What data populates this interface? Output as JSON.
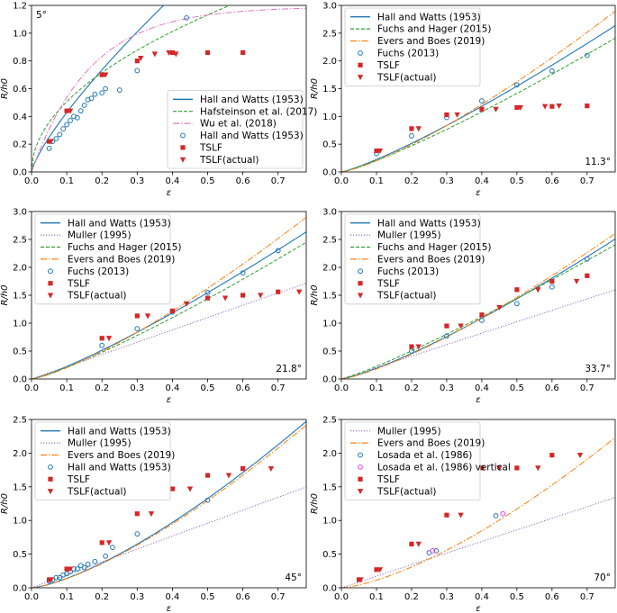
{
  "figure": {
    "style": {
      "hall_color": "#1f77b4",
      "green_color": "#2ca02c",
      "orange_color": "#ff7f0e",
      "purple_color": "#9467bd",
      "pink_color": "#e377c2",
      "red_color": "#d62728"
    }
  },
  "chart_data": [
    {
      "type": "scatter",
      "angle_label": "5°",
      "angle_pos": "top-left",
      "legend_pos": "bottom-right",
      "xlabel": "ε",
      "ylabel": "R/h0",
      "xlim": [
        0,
        0.78
      ],
      "ylim": [
        0,
        1.2
      ],
      "xticks": [
        "0.0",
        "0.1",
        "0.2",
        "0.3",
        "0.4",
        "0.5",
        "0.6",
        "0.7"
      ],
      "yticks": [
        "0.0",
        "0.2",
        "0.4",
        "0.6",
        "0.8",
        "1.0",
        "1.2"
      ],
      "series": [
        {
          "name": "Hall and Watts (1953)",
          "kind": "line",
          "model": "hall",
          "params": {
            "a": 2.58,
            "b": 0.78
          }
        },
        {
          "name": "Hafsteinson et al. (2017)",
          "kind": "line",
          "model": "sqrt",
          "params": {
            "a": 1.6
          }
        },
        {
          "name": "Wu et al. (2018)",
          "kind": "line",
          "model": "wu",
          "params": {
            "a": 1.19,
            "k": 6.0
          }
        },
        {
          "name": "Hall and Watts (1953)",
          "kind": "points",
          "marker": "open-circle",
          "x": [
            0.05,
            0.06,
            0.07,
            0.08,
            0.09,
            0.1,
            0.11,
            0.12,
            0.13,
            0.14,
            0.15,
            0.16,
            0.17,
            0.18,
            0.2,
            0.21,
            0.25,
            0.3,
            0.44
          ],
          "y": [
            0.17,
            0.22,
            0.24,
            0.27,
            0.31,
            0.34,
            0.37,
            0.4,
            0.39,
            0.44,
            0.48,
            0.52,
            0.53,
            0.56,
            0.57,
            0.6,
            0.59,
            0.73,
            1.11
          ]
        },
        {
          "name": "TSLF",
          "kind": "points",
          "marker": "square",
          "x": [
            0.05,
            0.1,
            0.2,
            0.3,
            0.4,
            0.5,
            0.6
          ],
          "y": [
            0.22,
            0.44,
            0.7,
            0.8,
            0.86,
            0.86,
            0.86
          ]
        },
        {
          "name": "TSLF(actual)",
          "kind": "points",
          "marker": "tri-down",
          "x": [
            0.055,
            0.11,
            0.21,
            0.31,
            0.35,
            0.39,
            0.41
          ],
          "y": [
            0.22,
            0.44,
            0.7,
            0.82,
            0.85,
            0.86,
            0.85
          ]
        }
      ]
    },
    {
      "type": "scatter",
      "angle_label": "11.3°",
      "angle_pos": "bottom-right",
      "legend_pos": "top-left",
      "xlabel": "ε",
      "ylabel": "R/h0",
      "xlim": [
        0,
        0.78
      ],
      "ylim": [
        0,
        3.0
      ],
      "xticks": [
        "0.0",
        "0.1",
        "0.2",
        "0.3",
        "0.4",
        "0.5",
        "0.6",
        "0.7"
      ],
      "yticks": [
        "0.0",
        "0.5",
        "1.0",
        "1.5",
        "2.0",
        "2.5",
        "3.0"
      ],
      "series": [
        {
          "name": "Hall and Watts (1953)",
          "kind": "line",
          "model": "power",
          "params": {
            "a": 3.55,
            "p": 1.2
          }
        },
        {
          "name": "Fuchs and Hager (2015)",
          "kind": "line",
          "model": "power",
          "params": {
            "a": 3.25,
            "p": 1.2
          }
        },
        {
          "name": "Evers and Boes (2019)",
          "kind": "line",
          "model": "power",
          "params": {
            "a": 4.0,
            "p": 1.3
          }
        },
        {
          "name": "Fuchs (2013)",
          "kind": "points",
          "marker": "open-circle",
          "x": [
            0.1,
            0.2,
            0.3,
            0.4,
            0.5,
            0.6,
            0.7
          ],
          "y": [
            0.33,
            0.65,
            0.98,
            1.28,
            1.57,
            1.82,
            2.1
          ]
        },
        {
          "name": "TSLF",
          "kind": "points",
          "marker": "square",
          "x": [
            0.1,
            0.2,
            0.3,
            0.4,
            0.5,
            0.6,
            0.7
          ],
          "y": [
            0.38,
            0.78,
            1.03,
            1.13,
            1.16,
            1.18,
            1.19
          ]
        },
        {
          "name": "TSLF(actual)",
          "kind": "points",
          "marker": "tri-down",
          "x": [
            0.11,
            0.22,
            0.33,
            0.44,
            0.51,
            0.58,
            0.62
          ],
          "y": [
            0.38,
            0.78,
            1.03,
            1.13,
            1.16,
            1.18,
            1.19
          ]
        }
      ]
    },
    {
      "type": "scatter",
      "angle_label": "21.8°",
      "angle_pos": "bottom-right",
      "legend_pos": "top-left",
      "xlabel": "ε",
      "ylabel": "R/h0",
      "xlim": [
        0,
        0.78
      ],
      "ylim": [
        0,
        3.0
      ],
      "xticks": [
        "0.0",
        "0.1",
        "0.2",
        "0.3",
        "0.4",
        "0.5",
        "0.6",
        "0.7"
      ],
      "yticks": [
        "0.0",
        "0.5",
        "1.0",
        "1.5",
        "2.0",
        "2.5",
        "3.0"
      ],
      "series": [
        {
          "name": "Hall and Watts (1953)",
          "kind": "line",
          "model": "power",
          "params": {
            "a": 3.55,
            "p": 1.2
          }
        },
        {
          "name": "Muller (1995)",
          "kind": "line",
          "model": "power",
          "params": {
            "a": 2.2,
            "p": 1.0
          }
        },
        {
          "name": "Fuchs and Hager (2015)",
          "kind": "line",
          "model": "power",
          "params": {
            "a": 3.3,
            "p": 1.2
          }
        },
        {
          "name": "Evers and Boes (2019)",
          "kind": "line",
          "model": "power",
          "params": {
            "a": 4.0,
            "p": 1.3
          }
        },
        {
          "name": "Fuchs (2013)",
          "kind": "points",
          "marker": "open-circle",
          "x": [
            0.2,
            0.3,
            0.4,
            0.5,
            0.6,
            0.7
          ],
          "y": [
            0.6,
            0.9,
            1.2,
            1.55,
            1.9,
            2.3
          ]
        },
        {
          "name": "TSLF",
          "kind": "points",
          "marker": "square",
          "x": [
            0.2,
            0.3,
            0.4,
            0.5,
            0.6,
            0.7
          ],
          "y": [
            0.73,
            1.13,
            1.22,
            1.45,
            1.5,
            1.56
          ]
        },
        {
          "name": "TSLF(actual)",
          "kind": "points",
          "marker": "tri-down",
          "x": [
            0.22,
            0.33,
            0.44,
            0.55,
            0.65,
            0.76
          ],
          "y": [
            0.73,
            1.13,
            1.35,
            1.45,
            1.5,
            1.56
          ]
        }
      ]
    },
    {
      "type": "scatter",
      "angle_label": "33.7°",
      "angle_pos": "bottom-right",
      "legend_pos": "top-left",
      "xlabel": "ε",
      "ylabel": "R/h0",
      "xlim": [
        0,
        0.78
      ],
      "ylim": [
        0,
        3.0
      ],
      "xticks": [
        "0.0",
        "0.1",
        "0.2",
        "0.3",
        "0.4",
        "0.5",
        "0.6",
        "0.7"
      ],
      "yticks": [
        "0.0",
        "0.5",
        "1.0",
        "1.5",
        "2.0",
        "2.5",
        "3.0"
      ],
      "series": [
        {
          "name": "Hall and Watts (1953)",
          "kind": "line",
          "model": "power",
          "params": {
            "a": 3.42,
            "p": 1.25
          }
        },
        {
          "name": "Muller (1995)",
          "kind": "line",
          "model": "power",
          "params": {
            "a": 2.05,
            "p": 1.0
          }
        },
        {
          "name": "Fuchs and Hager (2015)",
          "kind": "line",
          "model": "power",
          "params": {
            "a": 3.2,
            "p": 1.15
          }
        },
        {
          "name": "Evers and Boes (2019)",
          "kind": "line",
          "model": "power",
          "params": {
            "a": 3.6,
            "p": 1.3
          }
        },
        {
          "name": "Fuchs (2013)",
          "kind": "points",
          "marker": "open-circle",
          "x": [
            0.2,
            0.3,
            0.4,
            0.5,
            0.6,
            0.7
          ],
          "y": [
            0.5,
            0.77,
            1.05,
            1.35,
            1.65,
            2.15
          ]
        },
        {
          "name": "TSLF",
          "kind": "points",
          "marker": "square",
          "x": [
            0.2,
            0.3,
            0.4,
            0.5,
            0.6,
            0.7
          ],
          "y": [
            0.58,
            0.95,
            1.15,
            1.6,
            1.75,
            1.85
          ]
        },
        {
          "name": "TSLF(actual)",
          "kind": "points",
          "marker": "tri-down",
          "x": [
            0.22,
            0.34,
            0.45,
            0.56,
            0.67
          ],
          "y": [
            0.58,
            0.95,
            1.28,
            1.6,
            1.75
          ]
        }
      ]
    },
    {
      "type": "scatter",
      "angle_label": "45°",
      "angle_pos": "bottom-right",
      "legend_pos": "top-left",
      "xlabel": "ε",
      "ylabel": "R/h0",
      "xlim": [
        0,
        0.78
      ],
      "ylim": [
        0,
        2.5
      ],
      "xticks": [
        "0.0",
        "0.1",
        "0.2",
        "0.3",
        "0.4",
        "0.5",
        "0.6",
        "0.7"
      ],
      "yticks": [
        "0.0",
        "0.5",
        "1.0",
        "1.5",
        "2.0",
        "2.5"
      ],
      "series": [
        {
          "name": "Hall and Watts (1953)",
          "kind": "line",
          "model": "power",
          "params": {
            "a": 3.5,
            "p": 1.4
          }
        },
        {
          "name": "Muller (1995)",
          "kind": "line",
          "model": "power",
          "params": {
            "a": 1.92,
            "p": 1.0
          }
        },
        {
          "name": "Evers and Boes (2019)",
          "kind": "line",
          "model": "power",
          "params": {
            "a": 3.42,
            "p": 1.4
          }
        },
        {
          "name": "Hall and Watts (1953)",
          "kind": "points",
          "marker": "open-circle",
          "x": [
            0.05,
            0.06,
            0.07,
            0.08,
            0.09,
            0.1,
            0.11,
            0.12,
            0.13,
            0.14,
            0.15,
            0.16,
            0.18,
            0.21,
            0.23,
            0.3,
            0.5
          ],
          "y": [
            0.1,
            0.12,
            0.15,
            0.15,
            0.19,
            0.21,
            0.24,
            0.28,
            0.28,
            0.33,
            0.3,
            0.35,
            0.39,
            0.47,
            0.6,
            0.8,
            1.3
          ]
        },
        {
          "name": "TSLF",
          "kind": "points",
          "marker": "square",
          "x": [
            0.05,
            0.1,
            0.2,
            0.3,
            0.4,
            0.5,
            0.6
          ],
          "y": [
            0.12,
            0.28,
            0.67,
            1.1,
            1.47,
            1.67,
            1.77
          ]
        },
        {
          "name": "TSLF(actual)",
          "kind": "points",
          "marker": "tri-down",
          "x": [
            0.055,
            0.11,
            0.22,
            0.34,
            0.45,
            0.56,
            0.68
          ],
          "y": [
            0.12,
            0.28,
            0.67,
            1.1,
            1.47,
            1.67,
            1.77
          ]
        }
      ]
    },
    {
      "type": "scatter",
      "angle_label": "70°",
      "angle_pos": "bottom-right",
      "legend_pos": "top-left",
      "xlabel": "ε",
      "ylabel": "R/h0",
      "xlim": [
        0,
        0.78
      ],
      "ylim": [
        0,
        2.5
      ],
      "xticks": [
        "0.0",
        "0.1",
        "0.2",
        "0.3",
        "0.4",
        "0.5",
        "0.6",
        "0.7"
      ],
      "yticks": [
        "0.0",
        "0.5",
        "1.0",
        "1.5",
        "2.0",
        "2.5"
      ],
      "series": [
        {
          "name": "Muller (1995)",
          "kind": "line",
          "model": "power",
          "params": {
            "a": 1.72,
            "p": 1.0
          }
        },
        {
          "name": "Evers and Boes (2019)",
          "kind": "line",
          "model": "power",
          "params": {
            "a": 3.2,
            "p": 1.45
          }
        },
        {
          "name": "Losada et al. (1986)",
          "kind": "points",
          "marker": "open-circle",
          "x": [
            0.25,
            0.27,
            0.44
          ],
          "y": [
            0.52,
            0.55,
            1.07
          ]
        },
        {
          "name": "Losada et al. (1986) vertical",
          "kind": "points",
          "marker": "open-circle-pink",
          "x": [
            0.26,
            0.46
          ],
          "y": [
            0.55,
            1.1
          ]
        },
        {
          "name": "TSLF",
          "kind": "points",
          "marker": "square",
          "x": [
            0.05,
            0.1,
            0.2,
            0.3,
            0.4,
            0.5,
            0.6
          ],
          "y": [
            0.12,
            0.27,
            0.65,
            1.08,
            1.78,
            1.78,
            1.97
          ]
        },
        {
          "name": "TSLF(actual)",
          "kind": "points",
          "marker": "tri-down",
          "x": [
            0.055,
            0.11,
            0.22,
            0.34,
            0.45,
            0.56,
            0.68
          ],
          "y": [
            0.12,
            0.27,
            0.65,
            1.08,
            1.78,
            1.78,
            1.97
          ]
        }
      ]
    }
  ]
}
